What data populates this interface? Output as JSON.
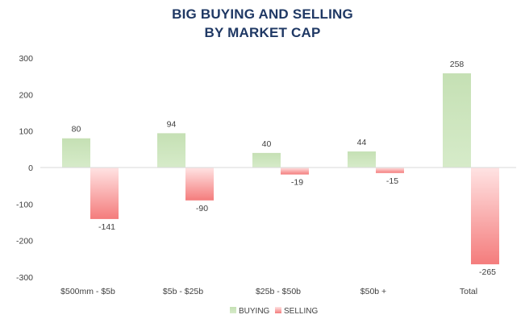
{
  "chart_data": {
    "type": "bar",
    "title_lines": [
      "BIG BUYING AND SELLING",
      "BY MARKET CAP"
    ],
    "categories": [
      "$500mm - $5b",
      "$5b - $25b",
      "$25b - $50b",
      "$50b +",
      "Total"
    ],
    "series": [
      {
        "name": "BUYING",
        "values": [
          80,
          94,
          40,
          44,
          258
        ],
        "color": "#c5e0b4"
      },
      {
        "name": "SELLING",
        "values": [
          -141,
          -90,
          -19,
          -15,
          -265
        ],
        "color": "#f79a9a"
      }
    ],
    "ylim": [
      -300,
      300
    ],
    "yticks": [
      -300,
      -200,
      -100,
      0,
      100,
      200,
      300
    ],
    "grid": false,
    "legend_position": "bottom",
    "xlabel": "",
    "ylabel": ""
  }
}
